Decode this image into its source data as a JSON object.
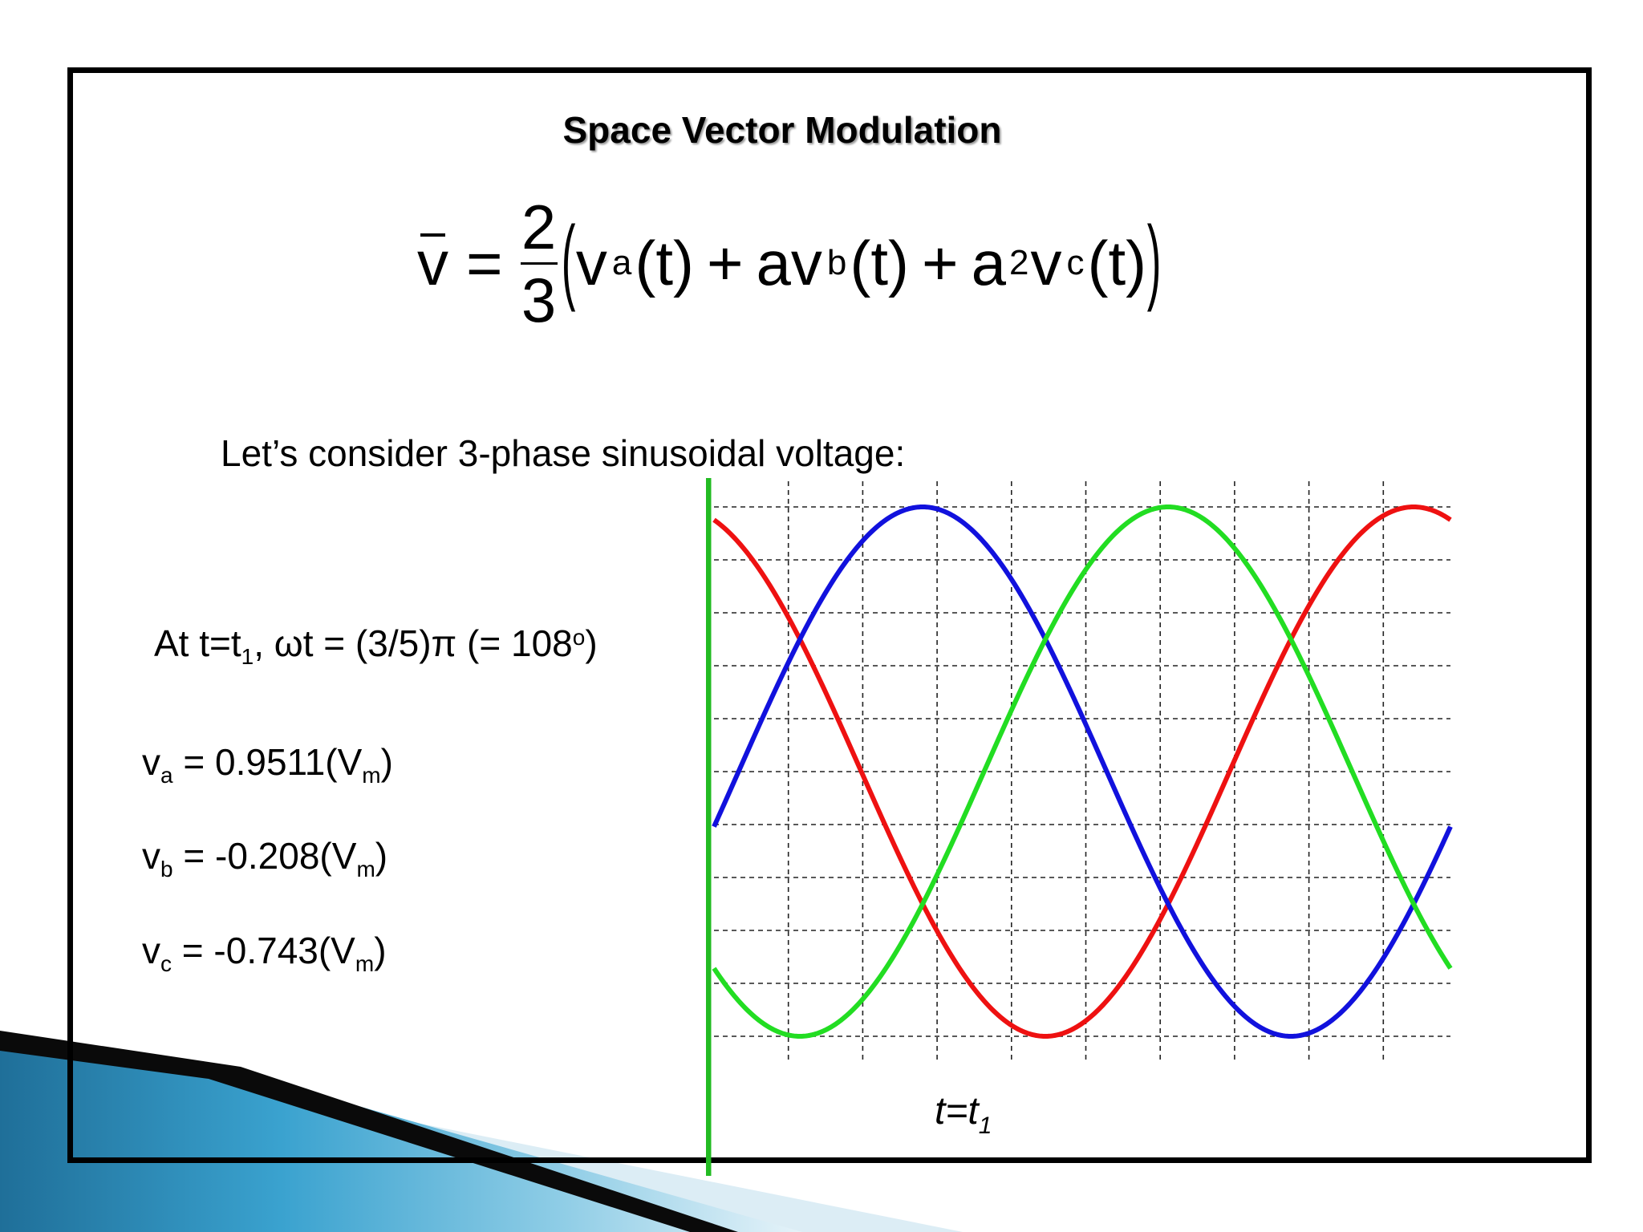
{
  "slide": {
    "title": "Space Vector Modulation",
    "formula": {
      "lhs": "v",
      "equals": "=",
      "fraction_numerator": "2",
      "fraction_denominator": "3",
      "paren_open": "(",
      "paren_close": ")",
      "term_a_var": "v",
      "term_a_sub": "a",
      "term_a_arg": "(t)",
      "plus1": "+",
      "term_b_var": "av",
      "term_b_sub": "b",
      "term_b_arg": "(t)",
      "plus2": "+",
      "term_c_coef": "a",
      "term_c_exp": "2",
      "term_c_var": "v",
      "term_c_sub": "c",
      "term_c_arg": "(t)"
    },
    "intro": "Let’s consider 3-phase sinusoidal voltage:",
    "time_note": {
      "prefix": "At t=t",
      "sub": "1",
      "middle": ", ωt = (3/5)π (= 108",
      "sup": "o",
      "suffix": ")"
    },
    "voltages": [
      {
        "var": "v",
        "sub": "a",
        "value": " = 0.9511(V",
        "unit_sub": "m",
        "close": ")"
      },
      {
        "var": "v",
        "sub": "b",
        "value": " = -0.208(V",
        "unit_sub": "m",
        "close": ")"
      },
      {
        "var": "v",
        "sub": "c",
        "value": " = -0.743(V",
        "unit_sub": "m",
        "close": ")"
      }
    ],
    "marker_label": {
      "main": "t=t",
      "sub": "1"
    }
  },
  "chart_data": {
    "type": "line",
    "x_unit": "degrees (ωt)",
    "x_range": [
      108,
      468
    ],
    "y_range": [
      -1,
      1
    ],
    "grid": true,
    "grid_style": "dashed",
    "series": [
      {
        "color": "#ee1111",
        "phase_deg": 0,
        "values_note": "sin(ωt)"
      },
      {
        "color": "#1111dd",
        "phase_deg": -120,
        "values_note": "sin(ωt-120°)"
      },
      {
        "color": "#22dd22",
        "phase_deg": 120,
        "values_note": "sin(ωt+120°)"
      }
    ],
    "marker": {
      "x": 108,
      "color": "#22bb22"
    }
  },
  "colors": {
    "frame": "#000000",
    "decor_dark": "#0a0a0a",
    "decor_blue": "#2c8fbf",
    "decor_light": "#cfe8f3"
  }
}
